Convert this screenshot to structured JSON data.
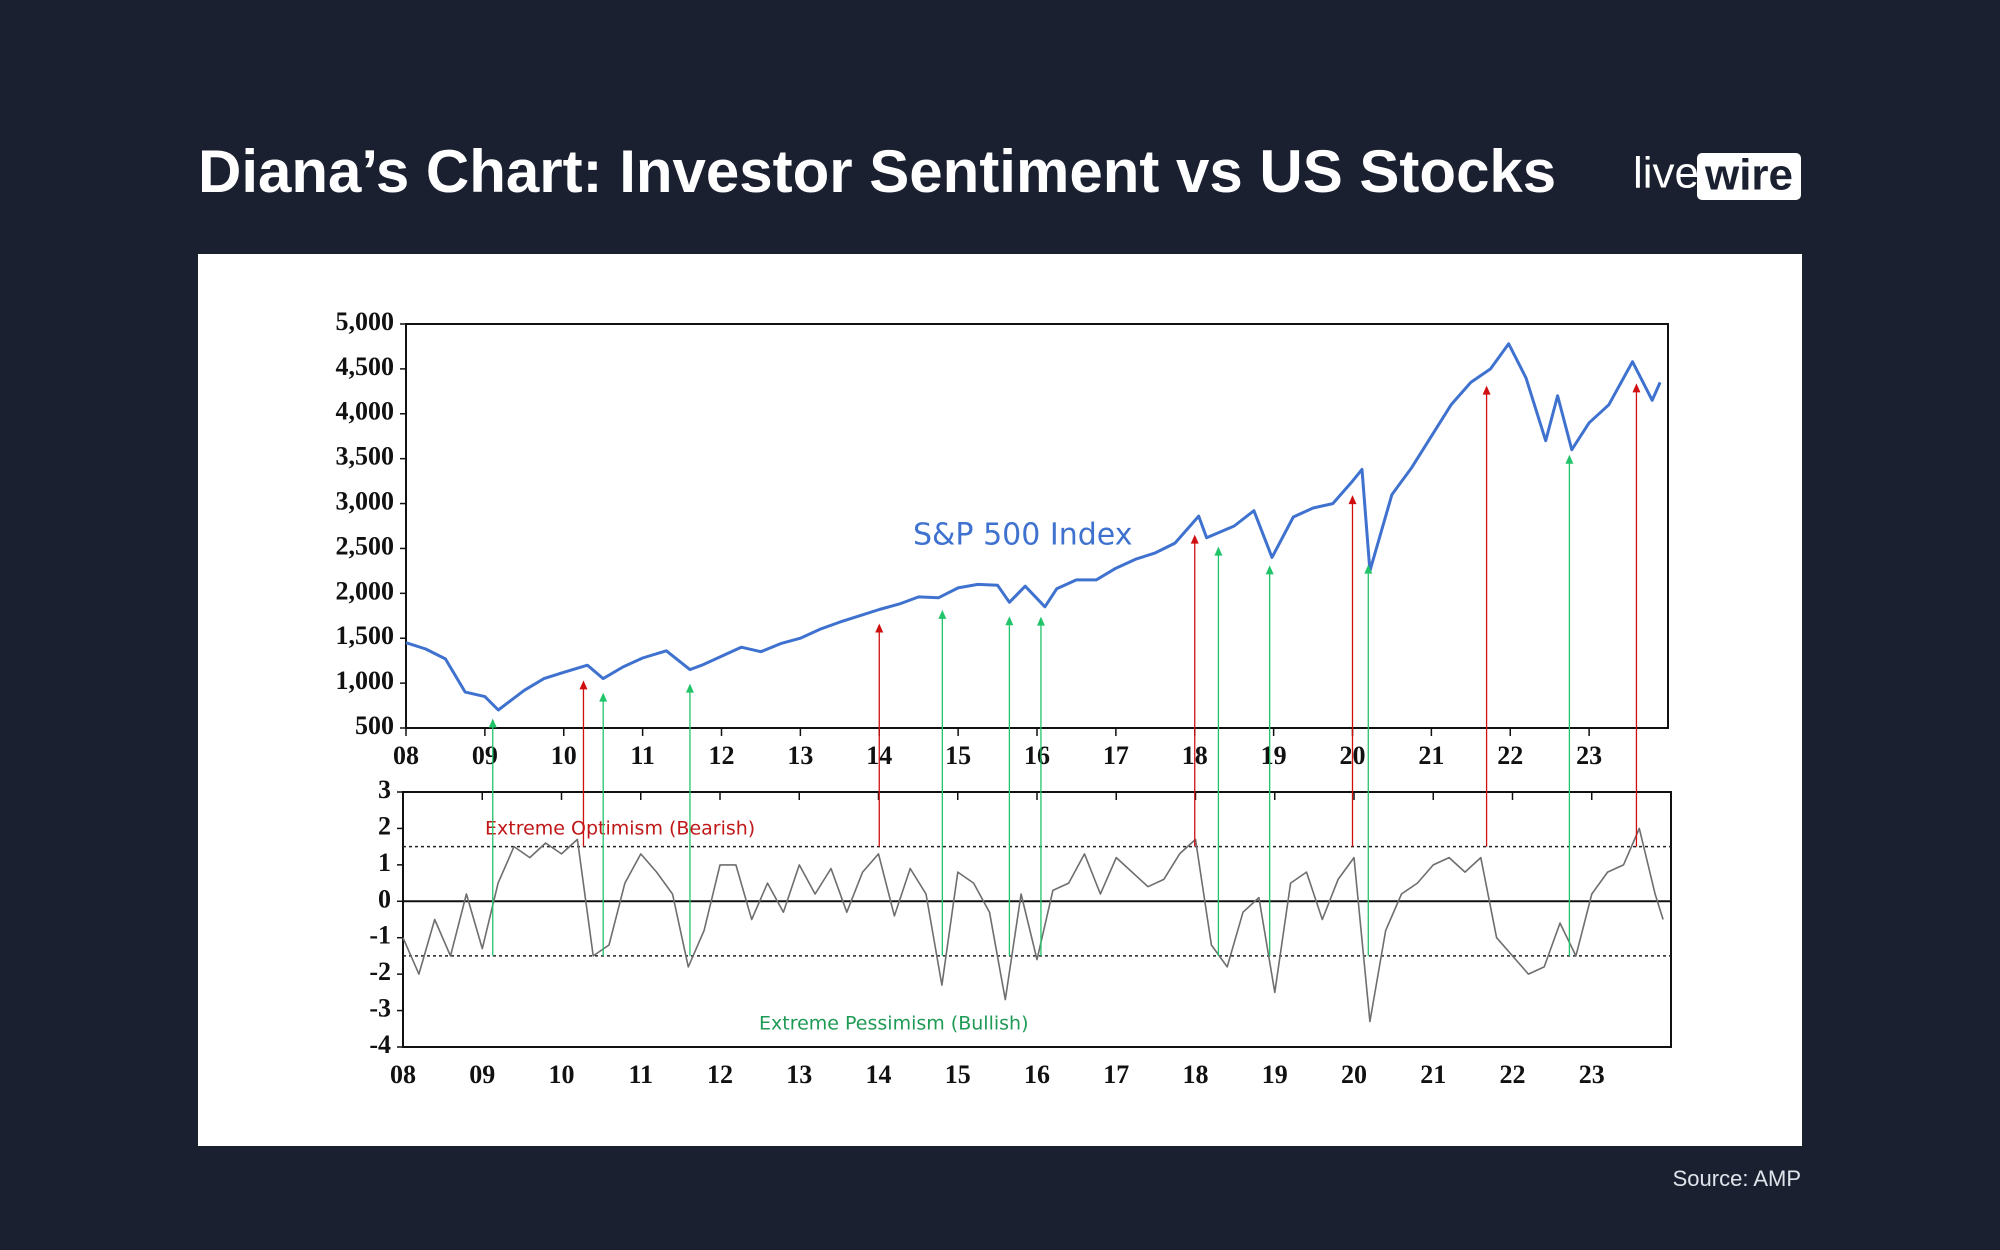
{
  "header": {
    "title": "Diana’s Chart: Investor Sentiment vs US Stocks",
    "logo_light": "live",
    "logo_bold": "wire"
  },
  "footer": {
    "source": "Source: AMP"
  },
  "chart_data": [
    {
      "type": "line",
      "label": "S&P 500 Index",
      "color": "#3f72cf",
      "x": [
        2008.0,
        2008.25,
        2008.5,
        2008.75,
        2009.0,
        2009.17,
        2009.5,
        2009.75,
        2010.0,
        2010.3,
        2010.5,
        2010.75,
        2011.0,
        2011.3,
        2011.6,
        2011.75,
        2012.0,
        2012.25,
        2012.5,
        2012.75,
        2013.0,
        2013.25,
        2013.5,
        2013.75,
        2014.0,
        2014.25,
        2014.5,
        2014.75,
        2015.0,
        2015.25,
        2015.5,
        2015.65,
        2015.85,
        2016.1,
        2016.25,
        2016.5,
        2016.75,
        2017.0,
        2017.25,
        2017.5,
        2017.75,
        2018.05,
        2018.15,
        2018.5,
        2018.75,
        2018.98,
        2019.25,
        2019.5,
        2019.75,
        2020.0,
        2020.12,
        2020.22,
        2020.5,
        2020.75,
        2021.0,
        2021.25,
        2021.5,
        2021.75,
        2021.98,
        2022.2,
        2022.45,
        2022.6,
        2022.78,
        2023.0,
        2023.25,
        2023.55,
        2023.8,
        2023.9
      ],
      "values": [
        1450,
        1380,
        1270,
        900,
        850,
        700,
        920,
        1050,
        1120,
        1200,
        1050,
        1180,
        1280,
        1360,
        1150,
        1200,
        1300,
        1400,
        1350,
        1440,
        1500,
        1600,
        1680,
        1750,
        1820,
        1880,
        1960,
        1950,
        2060,
        2100,
        2090,
        1900,
        2080,
        1850,
        2050,
        2150,
        2150,
        2280,
        2380,
        2450,
        2560,
        2860,
        2620,
        2750,
        2920,
        2400,
        2850,
        2950,
        3000,
        3250,
        3380,
        2250,
        3100,
        3400,
        3750,
        4100,
        4350,
        4500,
        4780,
        4400,
        3700,
        4200,
        3600,
        3900,
        4100,
        4580,
        4150,
        4350
      ],
      "xlim": [
        2008,
        2024
      ],
      "xticks": [
        {
          "value": 2008,
          "label": "08"
        },
        {
          "value": 2009,
          "label": "09"
        },
        {
          "value": 2010,
          "label": "10"
        },
        {
          "value": 2011,
          "label": "11"
        },
        {
          "value": 2012,
          "label": "12"
        },
        {
          "value": 2013,
          "label": "13"
        },
        {
          "value": 2014,
          "label": "14"
        },
        {
          "value": 2015,
          "label": "15"
        },
        {
          "value": 2016,
          "label": "16"
        },
        {
          "value": 2017,
          "label": "17"
        },
        {
          "value": 2018,
          "label": "18"
        },
        {
          "value": 2019,
          "label": "19"
        },
        {
          "value": 2020,
          "label": "20"
        },
        {
          "value": 2021,
          "label": "21"
        },
        {
          "value": 2022,
          "label": "22"
        },
        {
          "value": 2023,
          "label": "23"
        }
      ],
      "ylim": [
        500,
        5000
      ],
      "yticks": [
        500,
        {
          "value": 1000,
          "label": "1,000"
        },
        {
          "value": 1500,
          "label": "1,500"
        },
        {
          "value": 2000,
          "label": "2,000"
        },
        {
          "value": 2500,
          "label": "2,500"
        },
        {
          "value": 3000,
          "label": "3,000"
        },
        {
          "value": 3500,
          "label": "3,500"
        },
        {
          "value": 4000,
          "label": "4,000"
        },
        {
          "value": 4500,
          "label": "4,500"
        },
        {
          "value": 5000,
          "label": "5,000"
        }
      ],
      "signals": {
        "optimism": {
          "color": "#d01010",
          "x": [
            2010.25,
            2014.0,
            2018.0,
            2020.0,
            2021.7,
            2023.6
          ]
        },
        "pessimism": {
          "color": "#22c46a",
          "x": [
            2009.1,
            2010.5,
            2011.6,
            2014.8,
            2015.65,
            2016.05,
            2018.3,
            2018.95,
            2020.2,
            2022.75
          ]
        }
      }
    },
    {
      "type": "line",
      "color": "#6e6e6e",
      "x": [
        2008.0,
        2008.2,
        2008.4,
        2008.6,
        2008.8,
        2009.0,
        2009.2,
        2009.4,
        2009.6,
        2009.8,
        2010.0,
        2010.2,
        2010.4,
        2010.6,
        2010.8,
        2011.0,
        2011.2,
        2011.4,
        2011.6,
        2011.8,
        2012.0,
        2012.2,
        2012.4,
        2012.6,
        2012.8,
        2013.0,
        2013.2,
        2013.4,
        2013.6,
        2013.8,
        2014.0,
        2014.2,
        2014.4,
        2014.6,
        2014.8,
        2015.0,
        2015.2,
        2015.4,
        2015.6,
        2015.8,
        2016.0,
        2016.2,
        2016.4,
        2016.6,
        2016.8,
        2017.0,
        2017.2,
        2017.4,
        2017.6,
        2017.8,
        2018.0,
        2018.2,
        2018.4,
        2018.6,
        2018.8,
        2019.0,
        2019.2,
        2019.4,
        2019.6,
        2019.8,
        2020.0,
        2020.2,
        2020.4,
        2020.6,
        2020.8,
        2021.0,
        2021.2,
        2021.4,
        2021.6,
        2021.8,
        2022.0,
        2022.2,
        2022.4,
        2022.6,
        2022.8,
        2023.0,
        2023.2,
        2023.4,
        2023.6,
        2023.8,
        2023.9
      ],
      "values": [
        -1,
        -2,
        -0.5,
        -1.5,
        0.2,
        -1.3,
        0.5,
        1.5,
        1.2,
        1.6,
        1.3,
        1.7,
        -1.5,
        -1.2,
        0.5,
        1.3,
        0.8,
        0.2,
        -1.8,
        -0.8,
        1.0,
        1.0,
        -0.5,
        0.5,
        -0.3,
        1.0,
        0.2,
        0.9,
        -0.3,
        0.8,
        1.3,
        -0.4,
        0.9,
        0.2,
        -2.3,
        0.8,
        0.5,
        -0.3,
        -2.7,
        0.2,
        -1.6,
        0.3,
        0.5,
        1.3,
        0.2,
        1.2,
        0.8,
        0.4,
        0.6,
        1.3,
        1.7,
        -1.2,
        -1.8,
        -0.3,
        0.1,
        -2.5,
        0.5,
        0.8,
        -0.5,
        0.6,
        1.2,
        -3.3,
        -0.8,
        0.2,
        0.5,
        1.0,
        1.2,
        0.8,
        1.2,
        -1.0,
        -1.5,
        -2.0,
        -1.8,
        -0.6,
        -1.5,
        0.2,
        0.8,
        1.0,
        2.0,
        0.2,
        -0.5
      ],
      "xlim": [
        2008,
        2024
      ],
      "xticks": [
        {
          "value": 2008,
          "label": "08"
        },
        {
          "value": 2009,
          "label": "09"
        },
        {
          "value": 2010,
          "label": "10"
        },
        {
          "value": 2011,
          "label": "11"
        },
        {
          "value": 2012,
          "label": "12"
        },
        {
          "value": 2013,
          "label": "13"
        },
        {
          "value": 2014,
          "label": "14"
        },
        {
          "value": 2015,
          "label": "15"
        },
        {
          "value": 2016,
          "label": "16"
        },
        {
          "value": 2017,
          "label": "17"
        },
        {
          "value": 2018,
          "label": "18"
        },
        {
          "value": 2019,
          "label": "19"
        },
        {
          "value": 2020,
          "label": "20"
        },
        {
          "value": 2021,
          "label": "21"
        },
        {
          "value": 2022,
          "label": "22"
        },
        {
          "value": 2023,
          "label": "23"
        }
      ],
      "ylim": [
        -4,
        3
      ],
      "yticks": [
        -4,
        -3,
        -2,
        -1,
        0,
        1,
        2,
        3
      ],
      "baseline": 0,
      "thresholds": [
        1.5,
        -1.5
      ],
      "annotations": [
        {
          "text": "Extreme Optimism (Bearish)",
          "color": "#c01818"
        },
        {
          "text": "Extreme Pessimism (Bullish)",
          "color": "#1f9a55"
        }
      ]
    }
  ]
}
